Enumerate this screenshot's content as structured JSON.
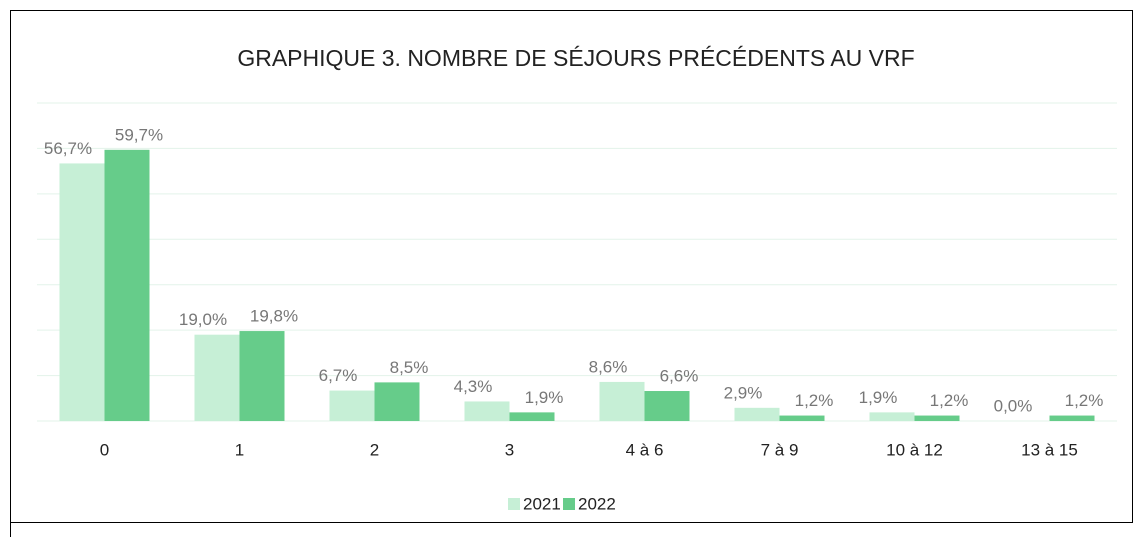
{
  "chart_data": {
    "type": "bar",
    "title": "GRAPHIQUE 3. NOMBRE DE SÉJOURS PRÉCÉDENTS AU VRF",
    "categories": [
      "0",
      "1",
      "2",
      "3",
      "4 à 6",
      "7 à 9",
      "10 à 12",
      "13 à 15"
    ],
    "series": [
      {
        "name": "2021",
        "color": "#c6efd6",
        "values": [
          56.7,
          19.0,
          6.7,
          4.3,
          8.6,
          2.9,
          1.9,
          0.0
        ],
        "value_labels": [
          "56,7%",
          "19,0%",
          "6,7%",
          "4,3%",
          "8,6%",
          "2,9%",
          "1,9%",
          "0,0%"
        ]
      },
      {
        "name": "2022",
        "color": "#66cc8a",
        "values": [
          59.7,
          19.8,
          8.5,
          1.9,
          6.6,
          1.2,
          1.2,
          1.2
        ],
        "value_labels": [
          "59,7%",
          "19,8%",
          "8,5%",
          "1,9%",
          "6,6%",
          "1,2%",
          "1,2%",
          "1,2%"
        ]
      }
    ],
    "ylim": [
      0,
      70
    ],
    "yticks": [
      0,
      10,
      20,
      30,
      40,
      50,
      60,
      70
    ],
    "grid": true,
    "legend": "bottom"
  }
}
